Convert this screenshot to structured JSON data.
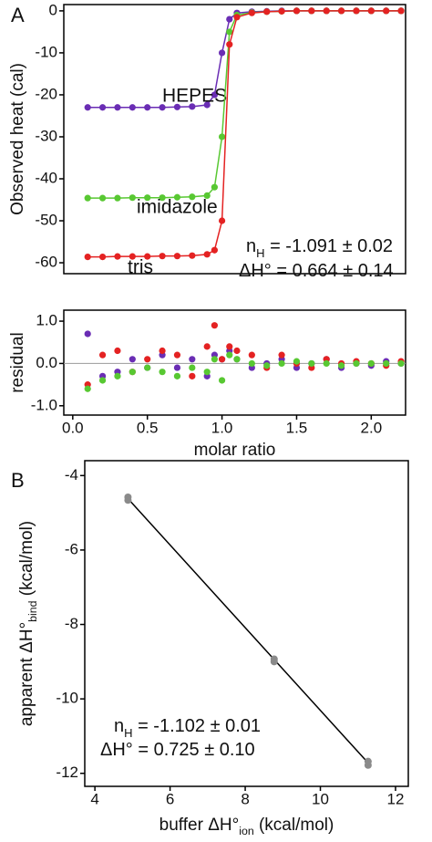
{
  "chart_data": [
    {
      "type": "line",
      "panel_label": "A",
      "ylabel": "Observed heat (cal)",
      "xlim": [
        -0.06,
        2.23
      ],
      "ylim": [
        -62.6,
        1.5
      ],
      "yticks": [
        0,
        -10,
        -20,
        -30,
        -40,
        -50,
        -60
      ],
      "x": [
        0.1,
        0.2,
        0.3,
        0.4,
        0.5,
        0.6,
        0.7,
        0.8,
        0.9,
        0.95,
        1.0,
        1.05,
        1.1,
        1.2,
        1.3,
        1.4,
        1.5,
        1.6,
        1.7,
        1.8,
        1.9,
        2.0,
        2.1,
        2.2
      ],
      "series": [
        {
          "name": "HEPES",
          "color": "#6a2db4",
          "values": [
            -23,
            -23,
            -23,
            -23,
            -23,
            -23,
            -22.9,
            -22.8,
            -22.4,
            -20,
            -10,
            -2,
            -0.5,
            -0.2,
            -0.1,
            0,
            0,
            0,
            0,
            0,
            0,
            0,
            0,
            0
          ]
        },
        {
          "name": "imidazole",
          "color": "#58c832",
          "values": [
            -44.6,
            -44.6,
            -44.6,
            -44.5,
            -44.5,
            -44.5,
            -44.4,
            -44.3,
            -44,
            -42,
            -30,
            -5,
            -1,
            -0.4,
            -0.2,
            -0.1,
            0,
            0,
            0,
            0,
            0,
            0,
            0,
            0
          ]
        },
        {
          "name": "tris",
          "color": "#e42222",
          "values": [
            -58.6,
            -58.6,
            -58.5,
            -58.5,
            -58.5,
            -58.4,
            -58.4,
            -58.3,
            -58,
            -57,
            -50,
            -8,
            -1.5,
            -0.5,
            -0.2,
            -0.1,
            0,
            0,
            0,
            0,
            0,
            0,
            0,
            0
          ]
        }
      ],
      "annotations": [
        {
          "parts": [
            {
              "text": "n"
            },
            {
              "text": "H",
              "sub": true
            },
            {
              "text": " = -1.091 ± 0.02"
            }
          ]
        },
        {
          "parts": [
            {
              "text": "ΔH° =  0.664 ± 0.14"
            }
          ]
        }
      ]
    },
    {
      "type": "scatter",
      "ylabel": "residual",
      "xlabel": "molar ratio",
      "xlim": [
        -0.06,
        2.23
      ],
      "ylim": [
        -1.22,
        1.26
      ],
      "yticks": [
        {
          "value": 1,
          "label": "1.0"
        },
        {
          "value": 0,
          "label": "0.0"
        },
        {
          "value": -1,
          "label": "-1.0"
        }
      ],
      "xticks": [
        {
          "value": 0,
          "label": "0.0"
        },
        0.5,
        {
          "value": 1,
          "label": "1.0"
        },
        1.5,
        {
          "value": 2,
          "label": "2.0"
        }
      ],
      "x": [
        0.1,
        0.2,
        0.3,
        0.4,
        0.5,
        0.6,
        0.7,
        0.8,
        0.9,
        0.95,
        1.0,
        1.05,
        1.1,
        1.2,
        1.3,
        1.4,
        1.5,
        1.6,
        1.7,
        1.8,
        1.9,
        2.0,
        2.1,
        2.2
      ],
      "series": [
        {
          "color": "#6a2db4",
          "values": [
            0.7,
            -0.3,
            -0.2,
            0.1,
            -0.1,
            0.2,
            -0.1,
            0.1,
            -0.3,
            0.2,
            0.1,
            0.3,
            0.1,
            -0.1,
            0,
            0.1,
            -0.1,
            0,
            0.1,
            -0.1,
            0,
            -0.05,
            0.05,
            0
          ]
        },
        {
          "color": "#e42222",
          "values": [
            -0.5,
            0.2,
            0.3,
            -0.2,
            0.1,
            0.3,
            0.2,
            -0.3,
            0.4,
            0.9,
            0.1,
            0.4,
            0.3,
            0.2,
            -0.1,
            0.2,
            0,
            -0.1,
            0.1,
            0,
            0.05,
            0,
            -0.05,
            0.05
          ]
        },
        {
          "color": "#58c832",
          "values": [
            -0.6,
            -0.4,
            -0.3,
            -0.2,
            -0.1,
            -0.2,
            -0.3,
            -0.1,
            -0.2,
            0.1,
            -0.4,
            0.2,
            0.1,
            0,
            -0.05,
            0,
            0.05,
            0,
            0,
            -0.05,
            0,
            0,
            0,
            0
          ]
        }
      ]
    },
    {
      "type": "scatter",
      "panel_label": "B",
      "ylabel": {
        "parts": [
          {
            "text": "apparent ΔH°"
          },
          {
            "text": "bind",
            "sub": true
          },
          {
            "text": " (kcal/mol)"
          }
        ]
      },
      "xlabel": {
        "parts": [
          {
            "text": "buffer ΔH°"
          },
          {
            "text": "ion",
            "sub": true
          },
          {
            "text": " (kcal/mol)"
          }
        ]
      },
      "xlim": [
        3.73,
        12.34
      ],
      "ylim": [
        -12.35,
        -3.6
      ],
      "xticks": [
        4,
        6,
        8,
        10,
        12
      ],
      "yticks": [
        -4,
        -6,
        -8,
        -10,
        -12
      ],
      "x": [
        4.88,
        4.88,
        8.77,
        8.77,
        11.27,
        11.27
      ],
      "series": [
        {
          "color": "#8a8a8a",
          "values": [
            -4.58,
            -4.66,
            -8.93,
            -9.0,
            -11.68,
            -11.78
          ]
        }
      ],
      "fit": {
        "color": "#000000",
        "x": [
          4.88,
          11.27
        ],
        "values": [
          -4.62,
          -11.72
        ]
      },
      "annotations": [
        {
          "parts": [
            {
              "text": "n"
            },
            {
              "text": "H",
              "sub": true
            },
            {
              "text": " = -1.102 ± 0.01"
            }
          ]
        },
        {
          "parts": [
            {
              "text": "ΔH° =  0.725 ± 0.10"
            }
          ]
        }
      ]
    }
  ]
}
